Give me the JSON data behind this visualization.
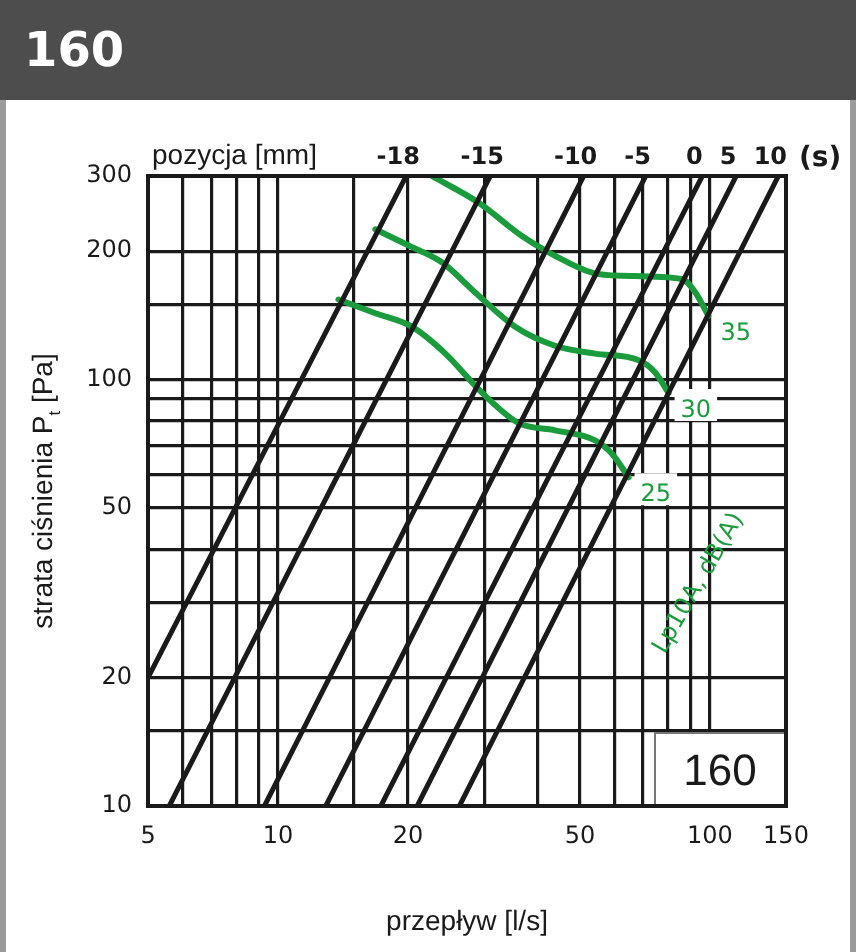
{
  "chart_data": {
    "type": "line",
    "title": "160",
    "xlabel": "przepływ [l/s]",
    "ylabel": "strata ciśnienia P$_{t}$ [Pa]",
    "x2label": "pozycja [mm]",
    "log": "xy",
    "grid": true,
    "legend": false,
    "marker": "none",
    "xlim": [
      5,
      150
    ],
    "ylim": [
      10,
      300
    ],
    "xticks": [
      5,
      {
        "value": 6,
        "label": null
      },
      {
        "value": 7,
        "label": null
      },
      {
        "value": 8,
        "label": null
      },
      {
        "value": 9,
        "label": null
      },
      10,
      {
        "value": 15,
        "label": null
      },
      20,
      {
        "value": 30,
        "label": null
      },
      {
        "value": 40,
        "label": null
      },
      50,
      {
        "value": 60,
        "label": null
      },
      {
        "value": 70,
        "label": null
      },
      {
        "value": 80,
        "label": null
      },
      {
        "value": 90,
        "label": null
      },
      100,
      150
    ],
    "yticks": [
      10,
      {
        "value": 15,
        "label": null
      },
      20,
      {
        "value": 30,
        "label": null
      },
      {
        "value": 40,
        "label": null
      },
      50,
      {
        "value": 60,
        "label": null
      },
      {
        "value": 70,
        "label": null
      },
      {
        "value": 80,
        "label": null
      },
      {
        "value": 90,
        "label": null
      },
      100,
      {
        "value": 150,
        "label": null
      },
      200,
      300
    ],
    "series": [
      {
        "name": "-18",
        "color": "#1a1a1a",
        "x": [
          5,
          19.8
        ],
        "values": [
          20,
          300
        ]
      },
      {
        "name": "-15",
        "color": "#1a1a1a",
        "x": [
          5.6,
          31
        ],
        "values": [
          10,
          300
        ]
      },
      {
        "name": "-10",
        "color": "#1a1a1a",
        "x": [
          9.3,
          51
        ],
        "values": [
          10,
          300
        ]
      },
      {
        "name": "-5",
        "color": "#1a1a1a",
        "x": [
          12.9,
          71
        ],
        "values": [
          10,
          300
        ]
      },
      {
        "name": "0",
        "color": "#1a1a1a",
        "x": [
          17.3,
          96
        ],
        "values": [
          10,
          300
        ]
      },
      {
        "name": "5",
        "color": "#1a1a1a",
        "x": [
          21,
          115
        ],
        "values": [
          10,
          300
        ]
      },
      {
        "name": "10",
        "color": "#1a1a1a",
        "x": [
          26.3,
          144
        ],
        "values": [
          10,
          300
        ]
      },
      {
        "name": "35",
        "color": "#1a9b3c",
        "x": [
          22.7,
          29.1,
          36.7,
          43.8,
          53.3,
          62.6,
          86.1,
          92.5,
          99.2
        ],
        "values": [
          300,
          260,
          217,
          195,
          178,
          175,
          172,
          160,
          141
        ]
      },
      {
        "name": "30",
        "color": "#1a9b3c",
        "x": [
          16.8,
          20.1,
          24,
          28.6,
          35.4,
          43.8,
          54.2,
          68.4,
          74.6,
          80.2
        ],
        "values": [
          225,
          206,
          188,
          160,
          133,
          120,
          115,
          111,
          104,
          93
        ]
      },
      {
        "name": "25",
        "color": "#1a9b3c",
        "x": [
          13.8,
          16.8,
          20.4,
          24.4,
          29.7,
          36.1,
          43.8,
          54.2,
          59.3,
          64.8
        ],
        "values": [
          154,
          143,
          133,
          115,
          93,
          79,
          76,
          72,
          67,
          59
        ]
      }
    ],
    "annotations": [
      "(s)",
      "Lp10A, dB(A)",
      "160"
    ]
  }
}
